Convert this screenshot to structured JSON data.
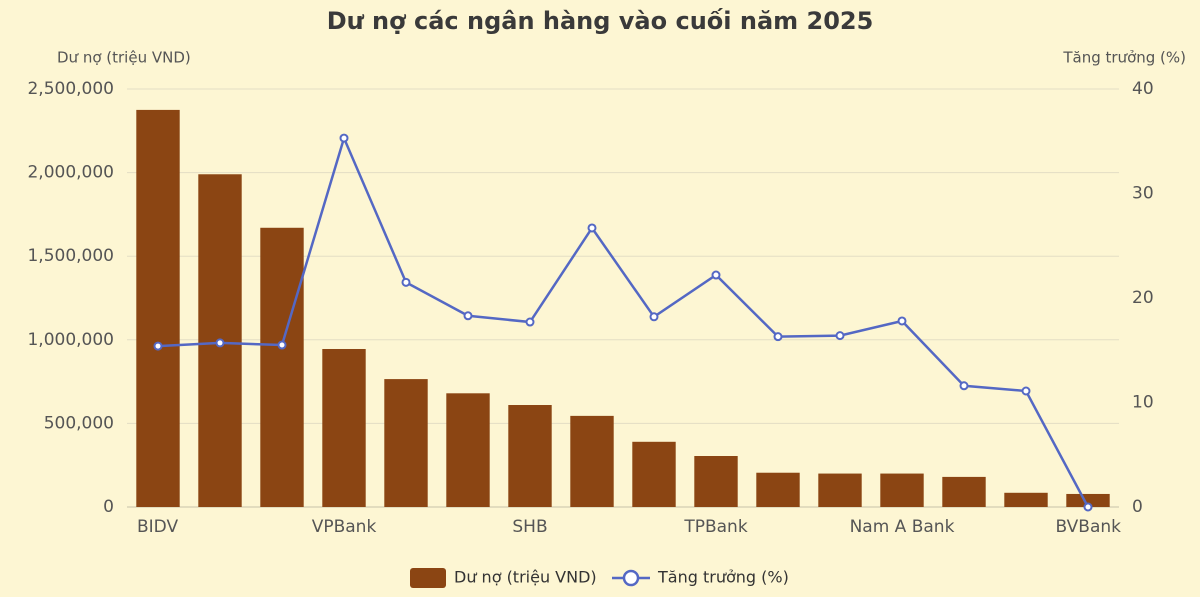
{
  "chart_data": {
    "type": "bar-line",
    "title": "Dư nợ các ngân hàng vào cuối năm 2025",
    "y_label": "Dư nợ (triệu VND)",
    "y2_label": "Tăng trưởng (%)",
    "categories": [
      "BIDV",
      null,
      null,
      "VPBank",
      null,
      null,
      "SHB",
      null,
      null,
      "TPBank",
      null,
      null,
      "Nam A Bank",
      null,
      null,
      "BVBank"
    ],
    "series": [
      {
        "name": "Dư nợ (triệu VND)",
        "type": "bar",
        "color": "#8b4513",
        "values": [
          2375000,
          1990000,
          1670000,
          945000,
          765000,
          680000,
          610000,
          545000,
          390000,
          305000,
          205000,
          200000,
          200000,
          180000,
          85000,
          78000
        ]
      },
      {
        "name": "Tăng trưởng (%)",
        "type": "line",
        "axis": "y2",
        "color": "#5468c4",
        "values": [
          15.4,
          15.7,
          15.5,
          35.3,
          21.5,
          18.3,
          17.7,
          26.7,
          18.2,
          22.2,
          16.3,
          16.4,
          17.8,
          11.6,
          11.1,
          0
        ]
      }
    ],
    "ylim": [
      0,
      2500000
    ],
    "yticks": [
      0,
      {
        "value": 500000,
        "label": "500,000"
      },
      {
        "value": 1000000,
        "label": "1,000,000"
      },
      {
        "value": 1500000,
        "label": "1,500,000"
      },
      {
        "value": 2000000,
        "label": "2,000,000"
      },
      {
        "value": 2500000,
        "label": "2,500,000"
      }
    ],
    "y2lim": [
      0,
      40
    ],
    "y2ticks": [
      0,
      10,
      20,
      30,
      40
    ],
    "grid": true,
    "legend": "bottom"
  }
}
